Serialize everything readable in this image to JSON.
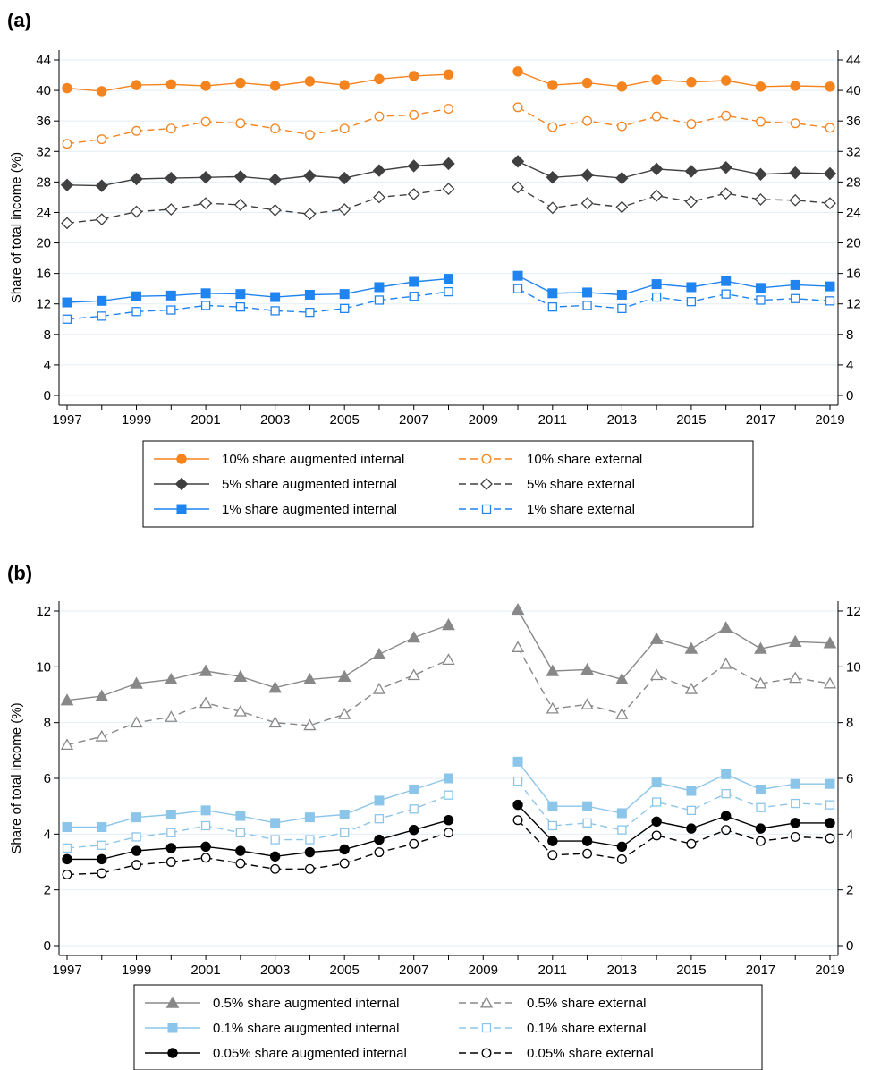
{
  "chart_data": [
    {
      "panel_label": "(a)",
      "type": "line",
      "ylabel": "Share of total income (%)",
      "xlabel": "",
      "xlim": [
        1997,
        2019
      ],
      "ylim": [
        0,
        44
      ],
      "x_ticks": [
        "1997",
        "1999",
        "2001",
        "2003",
        "2005",
        "2007",
        "2009",
        "2011",
        "2013",
        "2015",
        "2017",
        "2019"
      ],
      "y_ticks": [
        "0",
        "4",
        "8",
        "12",
        "16",
        "20",
        "24",
        "28",
        "32",
        "36",
        "40",
        "44"
      ],
      "grid": "horizontal",
      "legend_placement": "below",
      "x": [
        1997,
        1998,
        1999,
        2000,
        2001,
        2002,
        2003,
        2004,
        2005,
        2006,
        2007,
        2008,
        2009,
        2010,
        2011,
        2012,
        2013,
        2014,
        2015,
        2016,
        2017,
        2018,
        2019
      ],
      "series": [
        {
          "name": "10% share augmented internal",
          "color": "#f5841f",
          "marker": "circle-filled",
          "dash": false,
          "values": [
            40.3,
            39.9,
            40.7,
            40.8,
            40.6,
            41.0,
            40.6,
            41.2,
            40.7,
            41.5,
            41.9,
            42.1,
            null,
            42.5,
            40.7,
            41.0,
            40.5,
            41.4,
            41.1,
            41.3,
            40.5,
            40.6,
            40.5
          ]
        },
        {
          "name": "10% share external",
          "color": "#f5841f",
          "marker": "circle-open",
          "dash": true,
          "values": [
            33.0,
            33.6,
            34.7,
            35.0,
            35.9,
            35.7,
            35.0,
            34.2,
            35.0,
            36.6,
            36.8,
            37.6,
            null,
            37.8,
            35.2,
            36.0,
            35.3,
            36.6,
            35.6,
            36.7,
            35.9,
            35.7,
            35.1
          ]
        },
        {
          "name": "5% share augmented internal",
          "color": "#404040",
          "marker": "diamond-filled",
          "dash": false,
          "values": [
            27.6,
            27.5,
            28.4,
            28.5,
            28.6,
            28.7,
            28.3,
            28.8,
            28.5,
            29.5,
            30.1,
            30.4,
            null,
            30.7,
            28.6,
            28.9,
            28.5,
            29.7,
            29.4,
            29.9,
            29.0,
            29.2,
            29.1
          ]
        },
        {
          "name": "5% share external",
          "color": "#404040",
          "marker": "diamond-open",
          "dash": true,
          "values": [
            22.6,
            23.1,
            24.1,
            24.4,
            25.2,
            25.0,
            24.3,
            23.8,
            24.4,
            26.0,
            26.4,
            27.1,
            null,
            27.3,
            24.6,
            25.2,
            24.7,
            26.2,
            25.4,
            26.5,
            25.7,
            25.6,
            25.2
          ]
        },
        {
          "name": "1% share augmented internal",
          "color": "#1f84f0",
          "marker": "square-filled",
          "dash": false,
          "values": [
            12.2,
            12.4,
            13.0,
            13.1,
            13.4,
            13.3,
            12.9,
            13.2,
            13.3,
            14.2,
            14.9,
            15.3,
            null,
            15.7,
            13.4,
            13.5,
            13.2,
            14.6,
            14.2,
            15.0,
            14.1,
            14.5,
            14.3
          ]
        },
        {
          "name": "1% share external",
          "color": "#1f84f0",
          "marker": "square-open",
          "dash": true,
          "values": [
            10.0,
            10.4,
            11.0,
            11.2,
            11.8,
            11.6,
            11.1,
            10.9,
            11.4,
            12.5,
            13.0,
            13.6,
            null,
            14.0,
            11.6,
            11.8,
            11.4,
            12.9,
            12.3,
            13.3,
            12.5,
            12.7,
            12.4
          ]
        }
      ]
    },
    {
      "panel_label": "(b)",
      "type": "line",
      "ylabel": "Share of total income (%)",
      "xlabel": "",
      "xlim": [
        1997,
        2019
      ],
      "ylim": [
        0,
        12
      ],
      "x_ticks": [
        "1997",
        "1999",
        "2001",
        "2003",
        "2005",
        "2007",
        "2009",
        "2011",
        "2013",
        "2015",
        "2017",
        "2019"
      ],
      "y_ticks": [
        "0",
        "2",
        "4",
        "6",
        "8",
        "10",
        "12"
      ],
      "grid": "horizontal",
      "legend_placement": "below",
      "x": [
        1997,
        1998,
        1999,
        2000,
        2001,
        2002,
        2003,
        2004,
        2005,
        2006,
        2007,
        2008,
        2009,
        2010,
        2011,
        2012,
        2013,
        2014,
        2015,
        2016,
        2017,
        2018,
        2019
      ],
      "series": [
        {
          "name": "0.5% share augmented internal",
          "color": "#888888",
          "marker": "triangle-filled",
          "dash": false,
          "values": [
            8.8,
            8.95,
            9.4,
            9.55,
            9.85,
            9.65,
            9.25,
            9.55,
            9.65,
            10.45,
            11.05,
            11.5,
            null,
            12.05,
            9.85,
            9.9,
            9.55,
            11.0,
            10.65,
            11.4,
            10.65,
            10.9,
            10.85
          ]
        },
        {
          "name": "0.5% share external",
          "color": "#888888",
          "marker": "triangle-open",
          "dash": true,
          "values": [
            7.2,
            7.5,
            8.0,
            8.2,
            8.7,
            8.4,
            8.0,
            7.9,
            8.3,
            9.2,
            9.7,
            10.25,
            null,
            10.7,
            8.5,
            8.65,
            8.3,
            9.7,
            9.2,
            10.1,
            9.4,
            9.6,
            9.4
          ]
        },
        {
          "name": "0.1% share augmented internal",
          "color": "#8cc5ea",
          "marker": "square-filled",
          "dash": false,
          "values": [
            4.25,
            4.25,
            4.6,
            4.7,
            4.85,
            4.65,
            4.4,
            4.6,
            4.7,
            5.2,
            5.6,
            6.0,
            null,
            6.6,
            5.0,
            5.0,
            4.75,
            5.85,
            5.55,
            6.15,
            5.6,
            5.8,
            5.8
          ]
        },
        {
          "name": "0.1% share external",
          "color": "#8cc5ea",
          "marker": "square-open",
          "dash": true,
          "values": [
            3.5,
            3.6,
            3.9,
            4.05,
            4.3,
            4.05,
            3.8,
            3.8,
            4.05,
            4.55,
            4.9,
            5.4,
            null,
            5.9,
            4.3,
            4.4,
            4.15,
            5.15,
            4.85,
            5.45,
            4.95,
            5.1,
            5.05
          ]
        },
        {
          "name": "0.05% share augmented internal",
          "color": "#000000",
          "marker": "circle-filled",
          "dash": false,
          "values": [
            3.1,
            3.1,
            3.4,
            3.5,
            3.55,
            3.4,
            3.2,
            3.35,
            3.45,
            3.8,
            4.15,
            4.5,
            null,
            5.05,
            3.75,
            3.75,
            3.55,
            4.45,
            4.2,
            4.65,
            4.2,
            4.4,
            4.4
          ]
        },
        {
          "name": "0.05% share external",
          "color": "#000000",
          "marker": "circle-open",
          "dash": true,
          "values": [
            2.55,
            2.6,
            2.9,
            3.0,
            3.15,
            2.95,
            2.75,
            2.75,
            2.95,
            3.35,
            3.65,
            4.05,
            null,
            4.5,
            3.25,
            3.3,
            3.1,
            3.95,
            3.65,
            4.15,
            3.75,
            3.9,
            3.85
          ]
        }
      ]
    }
  ]
}
